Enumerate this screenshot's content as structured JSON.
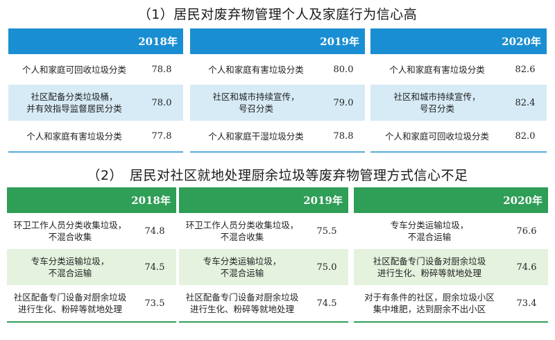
{
  "section1": {
    "title": "（1）居民对废弃物管理个人及家庭行为信心高",
    "panels": [
      {
        "year": "2018年",
        "rows": [
          {
            "label": "个人和家庭可回收垃圾分类",
            "value": "78.8"
          },
          {
            "label": "社区配备分类垃圾桶，\n并有效指导监督居民分类",
            "value": "78.0"
          },
          {
            "label": "个人和家庭有害垃圾分类",
            "value": "77.8"
          }
        ]
      },
      {
        "year": "2019年",
        "rows": [
          {
            "label": "个人和家庭有害垃圾分类",
            "value": "80.0"
          },
          {
            "label": "社区和城市持续宣传，\n号召分类",
            "value": "79.0"
          },
          {
            "label": "个人和家庭干湿垃圾分类",
            "value": "78.8"
          }
        ]
      },
      {
        "year": "2020年",
        "rows": [
          {
            "label": "个人和家庭有害垃圾分类",
            "value": "82.6"
          },
          {
            "label": "社区和城市持续宣传，\n号召分类",
            "value": "82.4"
          },
          {
            "label": "个人和家庭可回收垃圾分类",
            "value": "82.0"
          }
        ]
      }
    ]
  },
  "section2": {
    "title": "（2）　居民对社区就地处理厨余垃圾等废弃物管理方式信心不足",
    "panels": [
      {
        "year": "2018年",
        "rows": [
          {
            "label": "环卫工作人员分类收集垃圾，\n不混合收集",
            "value": "74.8"
          },
          {
            "label": "专车分类运输垃圾，\n不混合运输",
            "value": "74.5"
          },
          {
            "label": "社区配备专门设备对厨余垃圾\n进行生化、粉碎等就地处理",
            "value": "73.5"
          }
        ]
      },
      {
        "year": "2019年",
        "rows": [
          {
            "label": "环卫工作人员分类收集垃圾，\n不混合收集",
            "value": "75.5"
          },
          {
            "label": "专车分类运输垃圾，\n不混合运输",
            "value": "75.0"
          },
          {
            "label": "社区配备专门设备对厨余垃圾\n进行生化、粉碎等就地处理",
            "value": "74.5"
          }
        ]
      },
      {
        "year": "2020年",
        "rows": [
          {
            "label": "专车分类运输垃圾，\n不混合运输",
            "value": "76.6"
          },
          {
            "label": "社区配备专门设备对厨余垃圾\n进行生化、粉碎等就地处理",
            "value": "74.6"
          },
          {
            "label": "对于有条件的社区，厨余垃圾小区\n集中堆肥，达到厨余不出小区",
            "value": "73.4"
          }
        ]
      }
    ]
  },
  "colors": {
    "section1_header": "#1a8ed2",
    "section1_shade": "#d6ebf6",
    "section2_header": "#2f9e57",
    "section2_shade": "#e4f2de"
  }
}
